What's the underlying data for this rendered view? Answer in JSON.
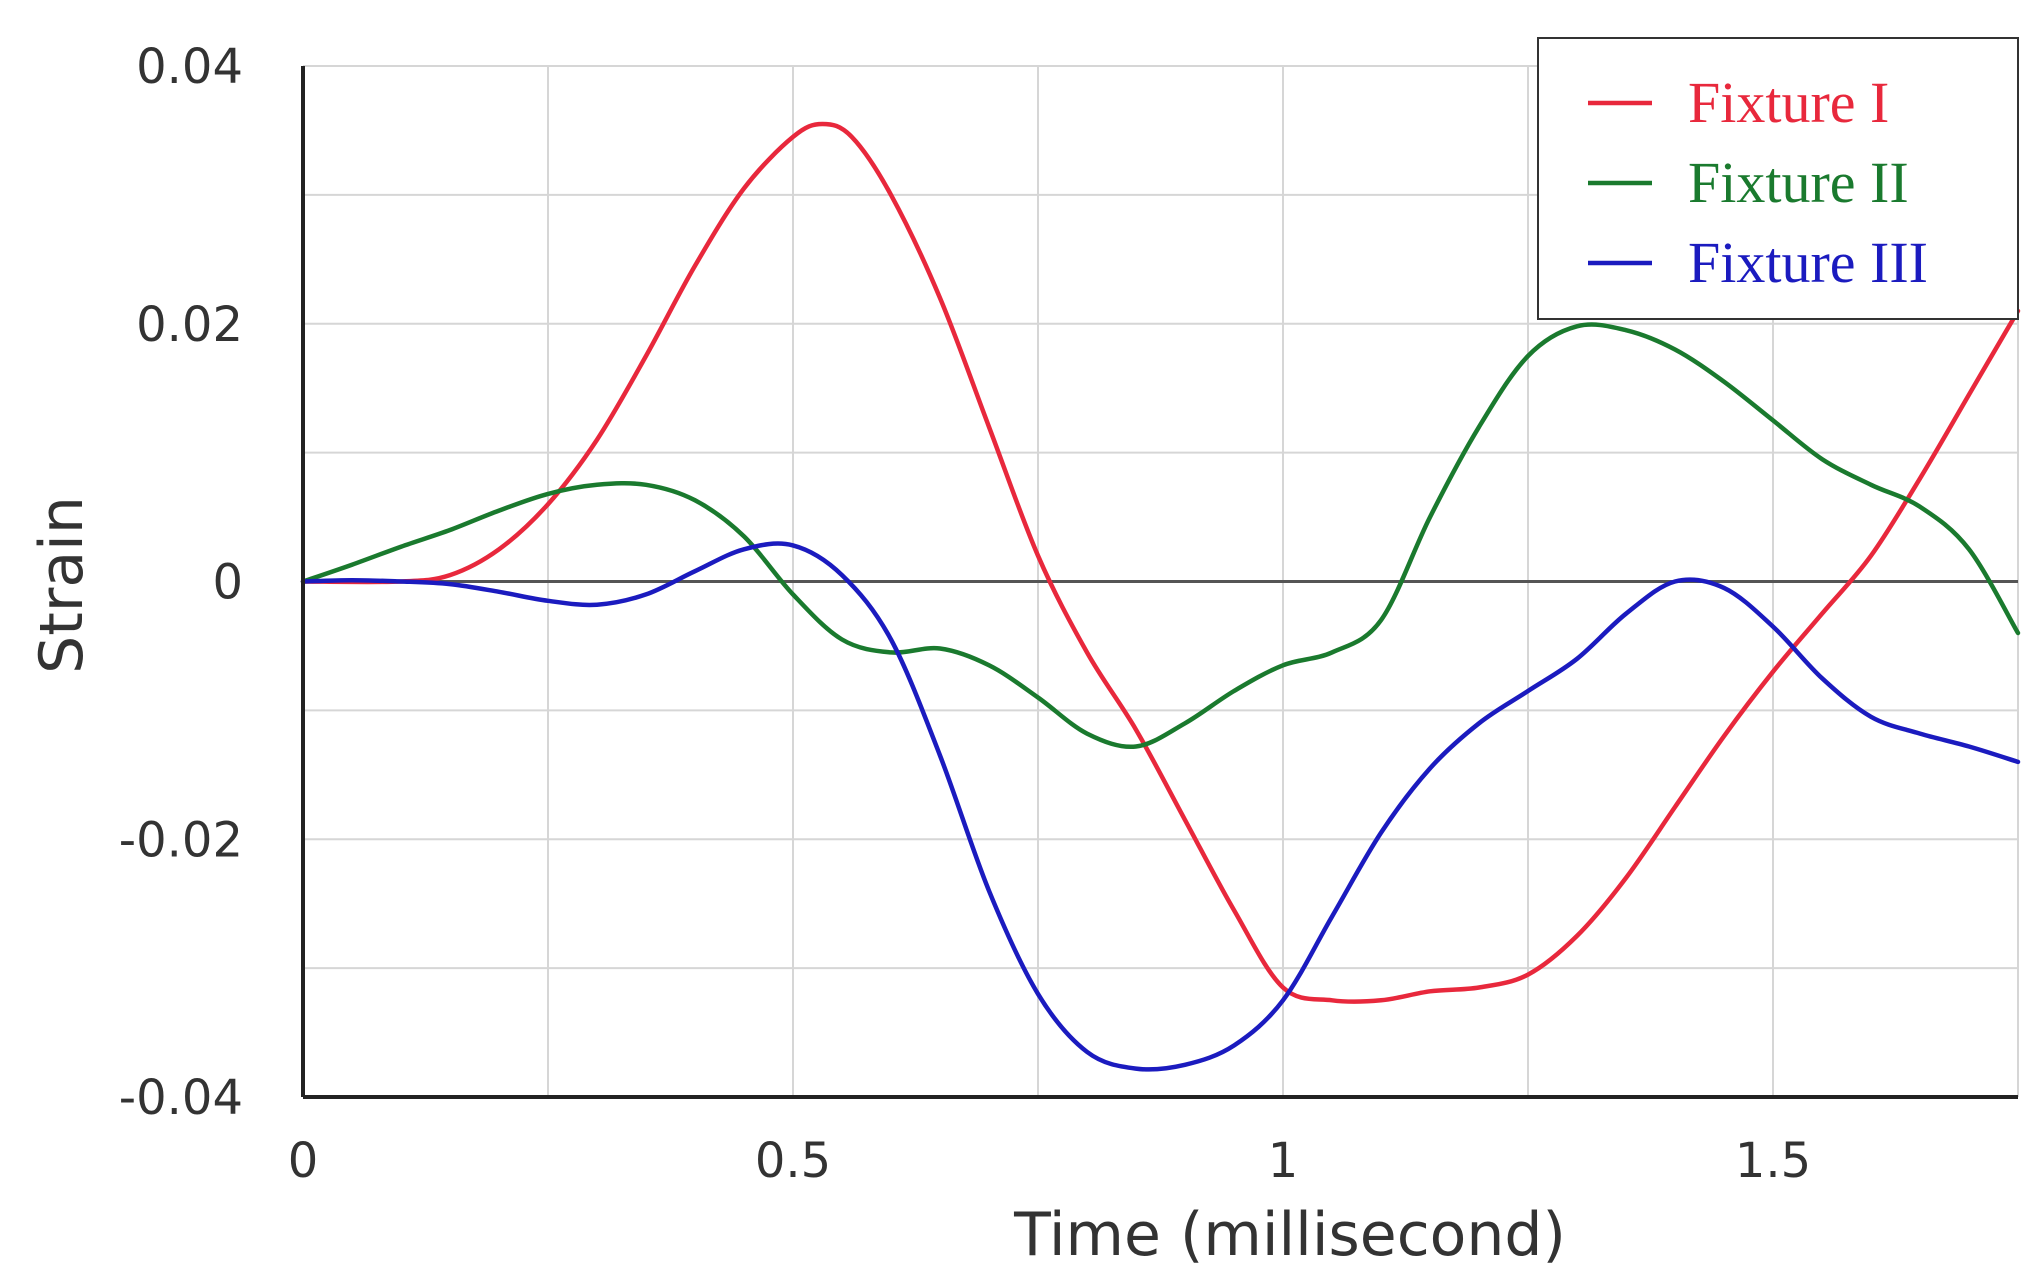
{
  "chart_data": {
    "type": "line",
    "xlabel": "Time (millisecond)",
    "ylabel": "Strain",
    "xlim": [
      0,
      1.75
    ],
    "ylim": [
      -0.04,
      0.04
    ],
    "x_ticks": [
      0,
      0.5,
      1,
      1.5
    ],
    "x_tick_labels": [
      "0",
      "0.5",
      "1",
      "1.5"
    ],
    "y_ticks": [
      0.04,
      0.02,
      0,
      -0.02,
      -0.04
    ],
    "y_tick_labels": [
      "0.04",
      "0.02",
      "0",
      "-0.02",
      "-0.04"
    ],
    "grid": true,
    "legend_position": "top-right",
    "series": [
      {
        "name": "Fixture I",
        "color": "#e8283c",
        "x": [
          0,
          0.1,
          0.15,
          0.2,
          0.25,
          0.3,
          0.35,
          0.4,
          0.45,
          0.5,
          0.53,
          0.56,
          0.6,
          0.65,
          0.7,
          0.75,
          0.8,
          0.85,
          0.9,
          0.95,
          1.0,
          1.05,
          1.1,
          1.15,
          1.2,
          1.25,
          1.3,
          1.35,
          1.4,
          1.45,
          1.5,
          1.55,
          1.6,
          1.65,
          1.7,
          1.75
        ],
        "y": [
          0,
          0,
          0.0005,
          0.0025,
          0.006,
          0.011,
          0.0175,
          0.0245,
          0.0305,
          0.0345,
          0.0355,
          0.0345,
          0.03,
          0.022,
          0.012,
          0.002,
          -0.0055,
          -0.0115,
          -0.0185,
          -0.0255,
          -0.0315,
          -0.0325,
          -0.0325,
          -0.0318,
          -0.0315,
          -0.0305,
          -0.0275,
          -0.023,
          -0.0175,
          -0.012,
          -0.007,
          -0.0025,
          0.002,
          0.008,
          0.0145,
          0.021
        ]
      },
      {
        "name": "Fixture II",
        "color": "#1a7a2e",
        "x": [
          0,
          0.05,
          0.1,
          0.15,
          0.2,
          0.25,
          0.3,
          0.35,
          0.4,
          0.45,
          0.5,
          0.55,
          0.6,
          0.65,
          0.7,
          0.75,
          0.8,
          0.85,
          0.9,
          0.95,
          1.0,
          1.05,
          1.1,
          1.15,
          1.2,
          1.25,
          1.3,
          1.35,
          1.4,
          1.45,
          1.5,
          1.55,
          1.6,
          1.65,
          1.7,
          1.75
        ],
        "y": [
          0,
          0.0013,
          0.0027,
          0.004,
          0.0055,
          0.0068,
          0.0075,
          0.0075,
          0.0063,
          0.0035,
          -0.001,
          -0.0045,
          -0.0055,
          -0.0052,
          -0.0065,
          -0.009,
          -0.0118,
          -0.0128,
          -0.011,
          -0.0085,
          -0.0065,
          -0.0055,
          -0.003,
          0.005,
          0.012,
          0.0175,
          0.0198,
          0.0195,
          0.018,
          0.0155,
          0.0125,
          0.0095,
          0.0075,
          0.0058,
          0.0025,
          -0.004
        ]
      },
      {
        "name": "Fixture III",
        "color": "#1b1bbf",
        "x": [
          0,
          0.05,
          0.1,
          0.15,
          0.2,
          0.25,
          0.3,
          0.35,
          0.4,
          0.45,
          0.5,
          0.55,
          0.6,
          0.65,
          0.7,
          0.75,
          0.8,
          0.85,
          0.9,
          0.95,
          1.0,
          1.05,
          1.1,
          1.15,
          1.2,
          1.25,
          1.3,
          1.35,
          1.4,
          1.45,
          1.5,
          1.55,
          1.6,
          1.65,
          1.7,
          1.75
        ],
        "y": [
          0,
          0.0001,
          0,
          -0.0002,
          -0.0008,
          -0.0015,
          -0.0018,
          -0.001,
          0.0008,
          0.0025,
          0.0028,
          0.0005,
          -0.0045,
          -0.0135,
          -0.024,
          -0.032,
          -0.0365,
          -0.0378,
          -0.0375,
          -0.036,
          -0.0325,
          -0.026,
          -0.0195,
          -0.0145,
          -0.011,
          -0.0085,
          -0.006,
          -0.0025,
          0,
          -0.0005,
          -0.0035,
          -0.0075,
          -0.0105,
          -0.0118,
          -0.0128,
          -0.014
        ]
      }
    ]
  }
}
